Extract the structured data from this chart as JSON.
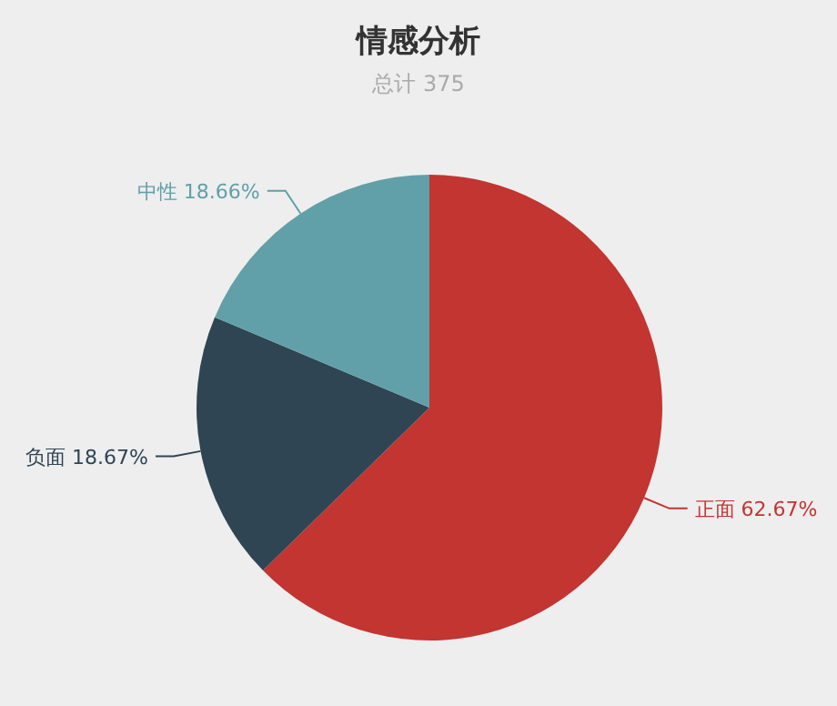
{
  "chart_data": {
    "type": "pie",
    "title": "情感分析",
    "subtitle": "总计 375",
    "categories": [
      "正面",
      "负面",
      "中性"
    ],
    "values": [
      62.67,
      18.67,
      18.66
    ],
    "value_labels": [
      "62.67%",
      "18.67%",
      "18.66%"
    ],
    "colors": [
      "#c23531",
      "#2f4554",
      "#61a0a8"
    ]
  }
}
